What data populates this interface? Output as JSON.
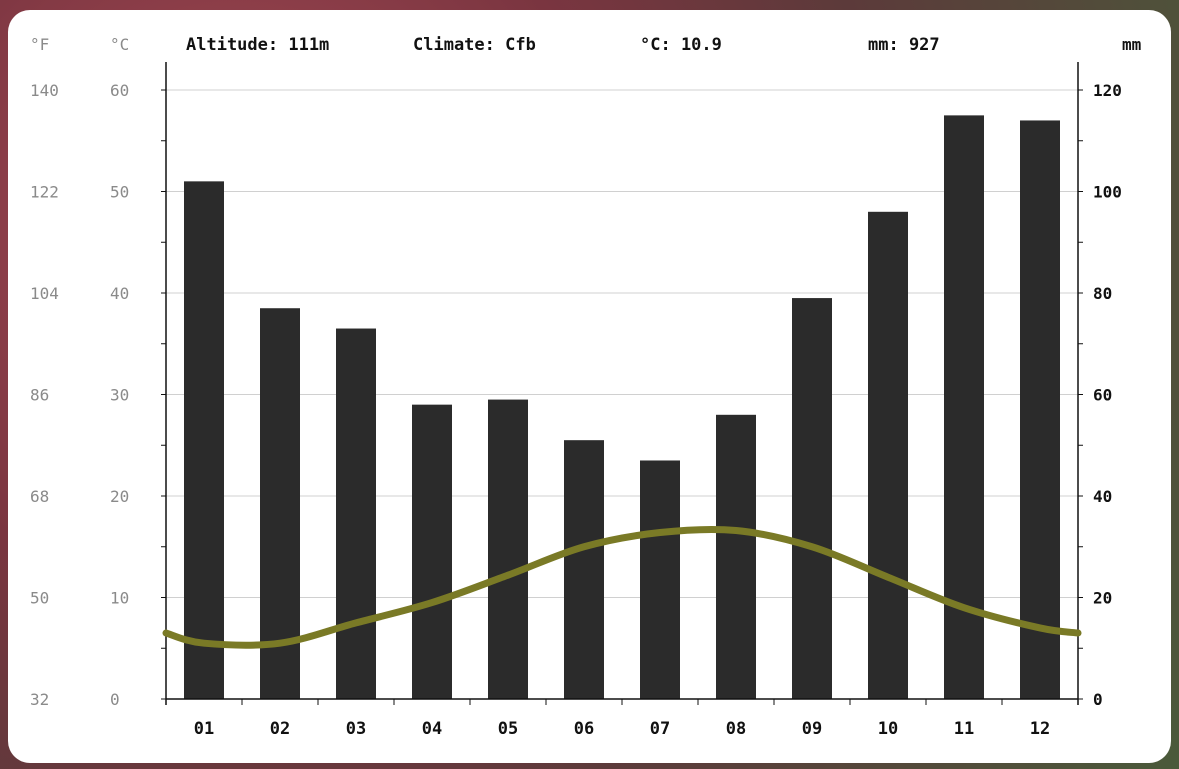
{
  "header": {
    "altitude": "Altitude: 111m",
    "climate": "Climate: Cfb",
    "temp": "°C: 10.9",
    "precip": "mm: 927"
  },
  "units": {
    "fahrenheit": "°F",
    "celsius": "°C",
    "mm": "mm"
  },
  "colors": {
    "bar": "#2b2b2b",
    "temp_line": "#7a7a26",
    "grid": "#d0d0d0"
  },
  "chart_data": {
    "type": "bar",
    "categories": [
      "01",
      "02",
      "03",
      "04",
      "05",
      "06",
      "07",
      "08",
      "09",
      "10",
      "11",
      "12"
    ],
    "series": [
      {
        "type": "bar",
        "axis": "right",
        "unit": "mm",
        "values": [
          102,
          77,
          73,
          58,
          59,
          51,
          47,
          56,
          79,
          96,
          115,
          114
        ]
      },
      {
        "type": "line",
        "axis": "left",
        "unit": "°C",
        "values": [
          5.5,
          5.5,
          7.5,
          9.5,
          12.2,
          15.0,
          16.4,
          16.6,
          15.0,
          12.0,
          9.0,
          7.0
        ],
        "edge_values": [
          6.5,
          6.5
        ]
      }
    ],
    "yaxis_celsius": {
      "ticks": [
        "60",
        "50",
        "40",
        "30",
        "20",
        "10",
        "0"
      ],
      "range": [
        0,
        60
      ]
    },
    "yaxis_fahrenheit": {
      "ticks": [
        "140",
        "122",
        "104",
        "86",
        "68",
        "50",
        "32"
      ]
    },
    "yaxis_mm": {
      "ticks": [
        "120",
        "100",
        "80",
        "60",
        "40",
        "20",
        "0"
      ],
      "range": [
        0,
        120
      ]
    },
    "grid": true
  }
}
